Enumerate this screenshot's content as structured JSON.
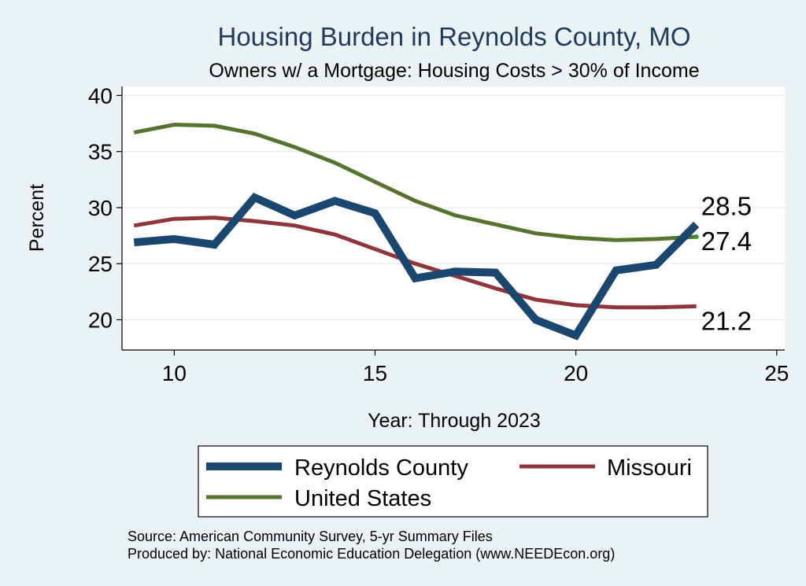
{
  "chart_data": {
    "type": "line",
    "title": "Housing Burden in Reynolds County, MO",
    "subtitle": "Owners w/ a Mortgage: Housing Costs > 30% of Income",
    "xlabel": "Year: Through 2023",
    "ylabel": "Percent",
    "xlim": [
      8.7,
      25.2
    ],
    "ylim": [
      17.3,
      40.8
    ],
    "xticks": [
      10,
      15,
      20,
      25
    ],
    "yticks": [
      20,
      25,
      30,
      35,
      40
    ],
    "grid": true,
    "legend_position": "bottom",
    "series": [
      {
        "name": "Reynolds County",
        "color": "#1a476f",
        "x": [
          9,
          10,
          11,
          12,
          13,
          14,
          15,
          16,
          17,
          18,
          19,
          20,
          21,
          22,
          23
        ],
        "values": [
          26.9,
          27.2,
          26.7,
          30.9,
          29.3,
          30.6,
          29.5,
          23.7,
          24.3,
          24.2,
          20.0,
          18.6,
          24.4,
          24.9,
          28.5
        ],
        "end_label": "28.5"
      },
      {
        "name": "Missouri",
        "color": "#90353b",
        "x": [
          9,
          10,
          11,
          12,
          13,
          14,
          15,
          16,
          17,
          18,
          19,
          20,
          21,
          22,
          23
        ],
        "values": [
          28.4,
          29.0,
          29.1,
          28.8,
          28.4,
          27.6,
          26.3,
          25.0,
          23.9,
          22.8,
          21.8,
          21.3,
          21.1,
          21.1,
          21.2
        ],
        "end_label": "21.2"
      },
      {
        "name": "United States",
        "color": "#55752f",
        "x": [
          9,
          10,
          11,
          12,
          13,
          14,
          15,
          16,
          17,
          18,
          19,
          20,
          21,
          22,
          23
        ],
        "values": [
          36.7,
          37.4,
          37.3,
          36.6,
          35.4,
          34.0,
          32.3,
          30.6,
          29.3,
          28.5,
          27.7,
          27.3,
          27.1,
          27.2,
          27.4
        ],
        "end_label": "27.4"
      }
    ],
    "legend": [
      "Reynolds County",
      "Missouri",
      "United States"
    ]
  },
  "footer": {
    "source": "Source: American Community Survey, 5-yr Summary Files",
    "producer": "Produced by: National Economic Education Delegation (www.NEEDEcon.org)"
  }
}
